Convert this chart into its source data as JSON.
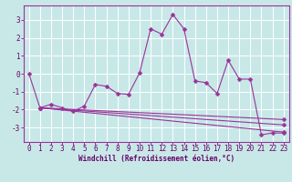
{
  "xlabel": "Windchill (Refroidissement éolien,°C)",
  "ylabel": "",
  "xlim": [
    -0.5,
    23.5
  ],
  "ylim": [
    -3.8,
    3.8
  ],
  "xticks": [
    0,
    1,
    2,
    3,
    4,
    5,
    6,
    7,
    8,
    9,
    10,
    11,
    12,
    13,
    14,
    15,
    16,
    17,
    18,
    19,
    20,
    21,
    22,
    23
  ],
  "yticks": [
    -3,
    -2,
    -1,
    0,
    1,
    2,
    3
  ],
  "background_color": "#c8e8e8",
  "grid_color": "#ffffff",
  "line_color": "#993399",
  "x_vals": [
    0,
    1,
    2,
    3,
    4,
    5,
    6,
    7,
    8,
    9,
    10,
    11,
    12,
    13,
    14,
    15,
    16,
    17,
    18,
    19,
    20,
    21,
    22,
    23
  ],
  "y_vals": [
    0.0,
    -1.9,
    -1.7,
    -1.9,
    -2.1,
    -1.8,
    -0.6,
    -0.7,
    -1.1,
    -1.15,
    0.05,
    2.5,
    2.2,
    3.3,
    2.5,
    -0.4,
    -0.5,
    -1.1,
    0.75,
    -0.3,
    -0.3,
    -3.4,
    -3.3,
    -3.3
  ],
  "extra_lines": [
    {
      "x": [
        1,
        23
      ],
      "y": [
        -1.9,
        -2.55
      ]
    },
    {
      "x": [
        1,
        23
      ],
      "y": [
        -1.9,
        -2.85
      ]
    },
    {
      "x": [
        1,
        23
      ],
      "y": [
        -1.9,
        -3.25
      ]
    }
  ],
  "font_size_xlabel": 5.5,
  "font_size_tick": 5.5,
  "marker": "D",
  "marker_size": 2.5,
  "line_width": 0.8,
  "spine_color": "#993399",
  "tick_color": "#660066",
  "label_color": "#660066"
}
